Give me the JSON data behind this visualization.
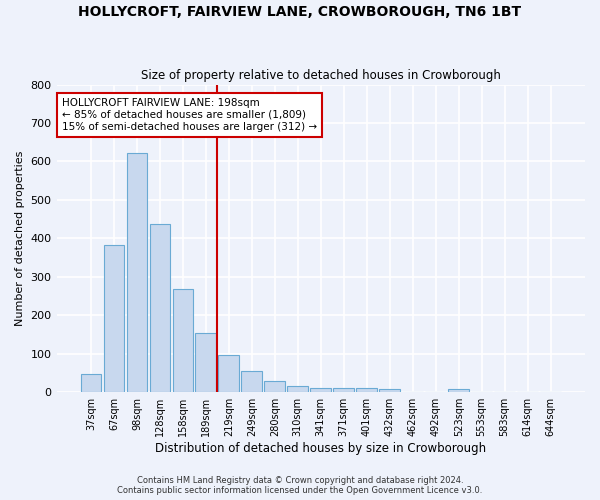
{
  "title": "HOLLYCROFT, FAIRVIEW LANE, CROWBOROUGH, TN6 1BT",
  "subtitle": "Size of property relative to detached houses in Crowborough",
  "xlabel": "Distribution of detached houses by size in Crowborough",
  "ylabel": "Number of detached properties",
  "categories": [
    "37sqm",
    "67sqm",
    "98sqm",
    "128sqm",
    "158sqm",
    "189sqm",
    "219sqm",
    "249sqm",
    "280sqm",
    "310sqm",
    "341sqm",
    "371sqm",
    "401sqm",
    "432sqm",
    "462sqm",
    "492sqm",
    "523sqm",
    "553sqm",
    "583sqm",
    "614sqm",
    "644sqm"
  ],
  "values": [
    48,
    382,
    623,
    438,
    268,
    155,
    96,
    55,
    30,
    15,
    11,
    12,
    11,
    8,
    0,
    0,
    8,
    0,
    0,
    0,
    0
  ],
  "bar_color": "#c8d8ee",
  "bar_edge_color": "#6aaad4",
  "vline_x": 5.5,
  "vline_color": "#cc0000",
  "annotation_text": "HOLLYCROFT FAIRVIEW LANE: 198sqm\n← 85% of detached houses are smaller (1,809)\n15% of semi-detached houses are larger (312) →",
  "annotation_box_color": "#ffffff",
  "annotation_box_edge_color": "#cc0000",
  "background_color": "#eef2fb",
  "grid_color": "#ffffff",
  "ylim": [
    0,
    800
  ],
  "yticks": [
    0,
    100,
    200,
    300,
    400,
    500,
    600,
    700,
    800
  ],
  "footer1": "Contains HM Land Registry data © Crown copyright and database right 2024.",
  "footer2": "Contains public sector information licensed under the Open Government Licence v3.0."
}
